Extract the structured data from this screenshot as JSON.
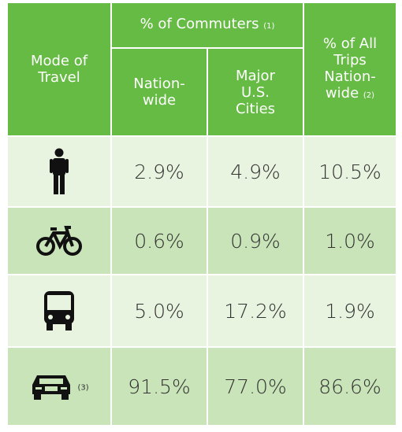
{
  "table": {
    "header": {
      "mode": [
        "Mode of",
        "Travel"
      ],
      "commuters": "% of Commuters",
      "commuters_note": "(1)",
      "nationwide": [
        "Nation-",
        "wide"
      ],
      "cities": [
        "Major",
        "U.S.",
        "Cities"
      ],
      "all_trips": [
        "% of All",
        "Trips",
        "Nation-",
        "wide"
      ],
      "all_trips_note": "(2)"
    },
    "rows": [
      [
        "2.9%",
        "4.9%",
        "10.5%"
      ],
      [
        "0.6%",
        "0.9%",
        "1.0%"
      ],
      [
        "5.0%",
        "17.2%",
        "1.9%"
      ],
      [
        "91.5%",
        "77.0%",
        "86.6%"
      ]
    ],
    "car_note": "(3)"
  }
}
